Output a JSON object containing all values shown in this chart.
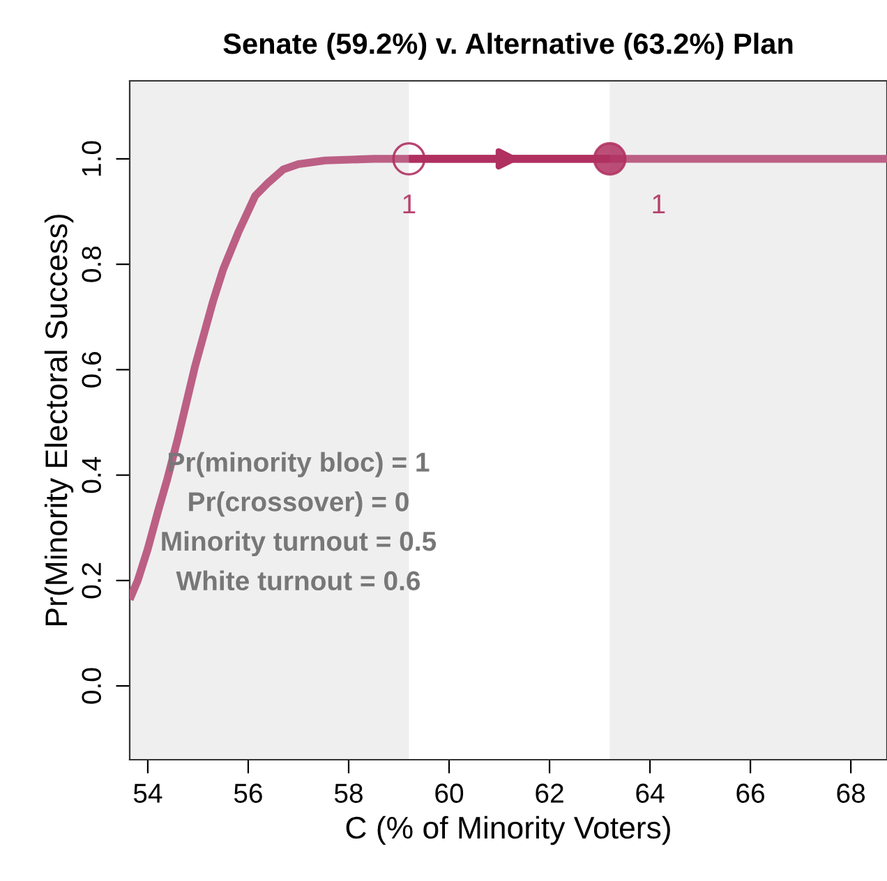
{
  "chart_data": {
    "type": "line",
    "title": "Senate (59.2%) v. Alternative (63.2%) Plan",
    "xlabel": "C (% of Minority Voters)",
    "ylabel": "Pr(Minority Electoral Success)",
    "xlim": [
      53.64,
      68.72
    ],
    "ylim": [
      -0.14,
      1.148
    ],
    "xticks": [
      54,
      56,
      58,
      60,
      62,
      64,
      66,
      68
    ],
    "yticks": [
      {
        "value": 0,
        "label": "0.0"
      },
      0.2,
      0.4,
      0.6,
      0.8,
      {
        "value": 1,
        "label": "1.0"
      }
    ],
    "grid": false,
    "legend": false,
    "bands": [
      {
        "axis": "x",
        "from": 53.64,
        "to": 59.2,
        "color": "#efefef"
      },
      {
        "axis": "x",
        "from": 63.2,
        "to": 68.72,
        "color": "#efefef"
      }
    ],
    "series": [
      {
        "color": "#bc5f84",
        "x": [
          53.64,
          53.8,
          54.0,
          54.2,
          54.39,
          54.6,
          54.94,
          55.3,
          55.5,
          55.8,
          56.14,
          56.4,
          56.7,
          57.0,
          57.53,
          58.5,
          59.2,
          63.2,
          68.72
        ],
        "values": [
          0.164,
          0.2,
          0.26,
          0.33,
          0.393,
          0.47,
          0.606,
          0.73,
          0.79,
          0.86,
          0.93,
          0.955,
          0.98,
          0.99,
          0.997,
          1.0,
          1.0,
          1.0,
          1.0
        ]
      },
      {
        "type": "line",
        "color": "#b03060",
        "marker": "circle",
        "x": [
          59.2,
          63.2
        ],
        "values": [
          1.0,
          1.0
        ],
        "value_labels": [
          "1",
          null
        ]
      },
      {
        "type": "scatter",
        "color": "#b03060",
        "marker": "circle",
        "x": [
          63.2
        ],
        "values": [
          1.0
        ],
        "value_labels": [
          "1"
        ]
      }
    ],
    "annotations": [
      "Pr(minority bloc) = 1",
      "Pr(crossover) = 0",
      "Minority turnout = 0.5",
      "White turnout = 0.6"
    ]
  }
}
